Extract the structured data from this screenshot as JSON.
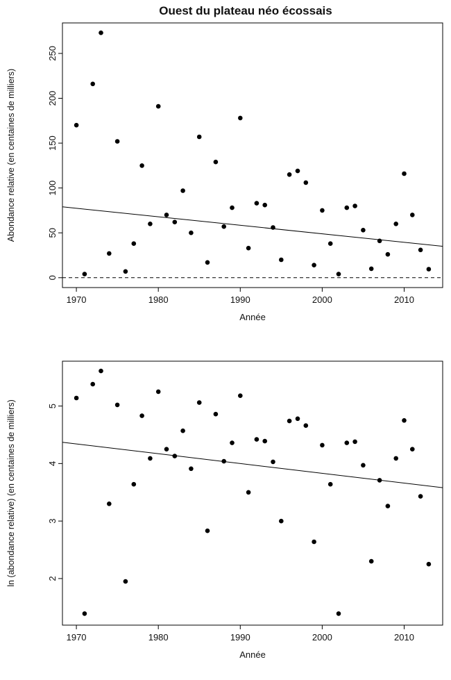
{
  "figure": {
    "title": "Ouest du plateau néo écossais",
    "x_axis_label": "Année",
    "top_y_axis_label": "Abondance relative (en centaines de milliers)",
    "bottom_y_axis_label": "ln (abondance relative) (en centaines de milliers)"
  },
  "chart_data": [
    {
      "type": "scatter",
      "title": "Ouest du plateau néo écossais",
      "xlabel": "Année",
      "ylabel": "Abondance relative (en centaines de milliers)",
      "xlim": [
        1968.3,
        2014.7
      ],
      "ylim": [
        -11,
        284
      ],
      "xticks": [
        1970,
        1980,
        1990,
        2000,
        2010
      ],
      "yticks": [
        0,
        50,
        100,
        150,
        200,
        250
      ],
      "grid": false,
      "point_color": "#000000",
      "x": [
        1970,
        1971,
        1972,
        1973,
        1974,
        1975,
        1976,
        1977,
        1978,
        1979,
        1980,
        1981,
        1982,
        1983,
        1984,
        1985,
        1986,
        1987,
        1988,
        1989,
        1990,
        1991,
        1992,
        1993,
        1994,
        1995,
        1996,
        1997,
        1998,
        1999,
        2000,
        2001,
        2002,
        2003,
        2004,
        2005,
        2006,
        2007,
        2008,
        2009,
        2010,
        2011,
        2012,
        2013
      ],
      "y": [
        170,
        4,
        216,
        273,
        27,
        152,
        7,
        38,
        125,
        60,
        191,
        70,
        62,
        97,
        50,
        157,
        17,
        129,
        57,
        78,
        178,
        33,
        83,
        81,
        56,
        20,
        115,
        119,
        106,
        14,
        75,
        38,
        4,
        78,
        80,
        53,
        10,
        41,
        26,
        60,
        116,
        70,
        31,
        9.5
      ],
      "trend_line": {
        "x1": 1968.3,
        "y1": 79,
        "x2": 2014.7,
        "y2": 35
      },
      "hline": {
        "y": 0,
        "style": "dashed"
      }
    },
    {
      "type": "scatter",
      "title": "",
      "xlabel": "Année",
      "ylabel": "ln (abondance relative) (en centaines de milliers)",
      "xlim": [
        1968.3,
        2014.7
      ],
      "ylim": [
        1.19,
        5.78
      ],
      "xticks": [
        1970,
        1980,
        1990,
        2000,
        2010
      ],
      "yticks": [
        2,
        3,
        4,
        5
      ],
      "grid": false,
      "point_color": "#000000",
      "x": [
        1970,
        1971,
        1972,
        1973,
        1974,
        1975,
        1976,
        1977,
        1978,
        1979,
        1980,
        1981,
        1982,
        1983,
        1984,
        1985,
        1986,
        1987,
        1988,
        1989,
        1990,
        1991,
        1992,
        1993,
        1994,
        1995,
        1996,
        1997,
        1998,
        1999,
        2000,
        2001,
        2002,
        2003,
        2004,
        2005,
        2006,
        2007,
        2008,
        2009,
        2010,
        2011,
        2012,
        2013
      ],
      "y": [
        5.14,
        1.39,
        5.38,
        5.61,
        3.3,
        5.02,
        1.95,
        3.64,
        4.83,
        4.09,
        5.25,
        4.25,
        4.13,
        4.57,
        3.91,
        5.06,
        2.83,
        4.86,
        4.04,
        4.36,
        5.18,
        3.5,
        4.42,
        4.39,
        4.03,
        3.0,
        4.74,
        4.78,
        4.66,
        2.64,
        4.32,
        3.64,
        1.39,
        4.36,
        4.38,
        3.97,
        2.3,
        3.71,
        3.26,
        4.09,
        4.75,
        4.25,
        3.43,
        2.25
      ],
      "trend_line": {
        "x1": 1968.3,
        "y1": 4.37,
        "x2": 2014.7,
        "y2": 3.58
      }
    }
  ]
}
